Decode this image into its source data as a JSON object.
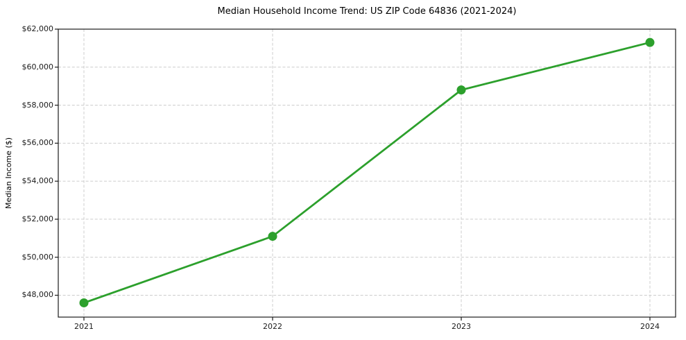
{
  "chart_data": {
    "type": "line",
    "title": "Median Household Income Trend: US ZIP Code 64836 (2021-2024)",
    "xlabel": "",
    "ylabel": "Median Income ($)",
    "categories": [
      "2021",
      "2022",
      "2023",
      "2024"
    ],
    "series": [
      {
        "name": "Median Household Income",
        "values": [
          47600,
          51100,
          58800,
          61300
        ]
      }
    ],
    "ylim": [
      46850,
      62000
    ],
    "yticks": [
      {
        "value": 48000,
        "label": "$48,000"
      },
      {
        "value": 50000,
        "label": "$50,000"
      },
      {
        "value": 52000,
        "label": "$52,000"
      },
      {
        "value": 54000,
        "label": "$54,000"
      },
      {
        "value": 56000,
        "label": "$56,000"
      },
      {
        "value": 58000,
        "label": "$58,000"
      },
      {
        "value": 60000,
        "label": "$60,000"
      },
      {
        "value": 62000,
        "label": "$62,000"
      }
    ],
    "grid": "dashed-both-axes",
    "legend_position": "none",
    "marker": "circle"
  },
  "colors": {
    "background": "#ffffff",
    "line": "#2ca02c",
    "grid": "#cccccc",
    "axis": "#1a1a1a",
    "text": "#1a1a1a"
  }
}
